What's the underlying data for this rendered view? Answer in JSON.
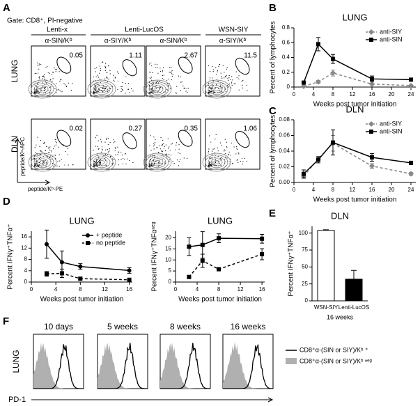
{
  "panel_labels": [
    "A",
    "B",
    "C",
    "D",
    "E",
    "F"
  ],
  "flow": {
    "gate": "Gate: CD8⁺, PI-negative",
    "groups": [
      "Lenti-x",
      "Lenti-LucOS",
      "WSN-SIY"
    ],
    "stains": [
      "α-SIN/Kᵇ",
      "α-SIY/Kᵇ",
      "α-SIN/Kᵇ",
      "α-SIY/Kᵇ"
    ],
    "rows": [
      {
        "label": "LUNG",
        "gates": [
          "0.05",
          "1.11",
          "2.67",
          "11.5"
        ]
      },
      {
        "label": "DLN",
        "gates": [
          "0.02",
          "0.27",
          "0.35",
          "1.06"
        ]
      }
    ],
    "y_axis": "peptide/Kᵇ-APC",
    "x_axis": "peptide/Kᵇ-PE"
  },
  "chart_data": [
    {
      "type": "line",
      "title": "LUNG",
      "xlabel": "Weeks post tumor initiation",
      "ylabel": "Percent of lymphocytes",
      "x": [
        2,
        5,
        8,
        16,
        24
      ],
      "xlim": [
        0,
        25
      ],
      "xticks": [
        0,
        4,
        8,
        12,
        16,
        20,
        24
      ],
      "ylim": [
        0,
        0.8
      ],
      "yticks": [
        0,
        0.2,
        0.4,
        0.6,
        0.8
      ],
      "legend": "upper right",
      "series": [
        {
          "name": "anti-SIY",
          "color": "#888888",
          "dashed": true,
          "marker": "diamond",
          "values": [
            0.01,
            0.07,
            0.19,
            0.04,
            0.02
          ],
          "errors": [
            0.01,
            0.02,
            0.04,
            0.01,
            0.01
          ]
        },
        {
          "name": "anti-SIN",
          "color": "#000000",
          "dashed": false,
          "marker": "square",
          "values": [
            0.06,
            0.58,
            0.38,
            0.11,
            0.1
          ],
          "errors": [
            0.01,
            0.09,
            0.06,
            0.04,
            0.02
          ]
        }
      ]
    },
    {
      "type": "line",
      "title": "DLN",
      "xlabel": "Weeks post tumor initiation",
      "ylabel": "Percent of lymphocytes",
      "x": [
        2,
        5,
        8,
        16,
        24
      ],
      "xlim": [
        0,
        25
      ],
      "xticks": [
        0,
        4,
        8,
        12,
        16,
        20,
        24
      ],
      "ylim": [
        0,
        0.08
      ],
      "yticks": [
        {
          "value": 0,
          "label": "0.00"
        },
        {
          "value": 0.02,
          "label": "0.02"
        },
        {
          "value": 0.04,
          "label": "0.04"
        },
        {
          "value": 0.06,
          "label": "0.06"
        },
        {
          "value": 0.08,
          "label": "0.08"
        }
      ],
      "legend": "upper right",
      "series": [
        {
          "name": "anti-SIY",
          "color": "#888888",
          "dashed": true,
          "marker": "diamond",
          "values": [
            0.008,
            0.03,
            0.05,
            0.021,
            0.011
          ],
          "errors": [
            0.003,
            0.003,
            0.01,
            0.003,
            0.002
          ]
        },
        {
          "name": "anti-SIN",
          "color": "#000000",
          "dashed": false,
          "marker": "square",
          "values": [
            0.011,
            0.029,
            0.051,
            0.032,
            0.025
          ],
          "errors": [
            0.005,
            0.004,
            0.016,
            0.005,
            0.001
          ]
        }
      ]
    },
    {
      "type": "line",
      "title": "LUNG",
      "xlabel": "Weeks post tumor initiation",
      "ylabel": "Percent IFNγ⁺TNFα⁺",
      "x": [
        2.5,
        5,
        8,
        16
      ],
      "xlim": [
        0,
        16.5
      ],
      "xticks": [
        0,
        4,
        8,
        12,
        16
      ],
      "ylim": [
        0,
        18
      ],
      "yticks": [
        0,
        4,
        8,
        12,
        16
      ],
      "legend": "upper right",
      "series": [
        {
          "name": "+ peptide",
          "color": "#000000",
          "dashed": false,
          "marker": "circle",
          "values": [
            13.4,
            7,
            5.5,
            4.1
          ],
          "errors": [
            5,
            4,
            1,
            1
          ]
        },
        {
          "name": "no peptide",
          "color": "#000000",
          "dashed": true,
          "marker": "square",
          "values": [
            2.9,
            3.1,
            1.2,
            0.8
          ],
          "errors": [
            0.8,
            1.5,
            0.3,
            0.2
          ]
        }
      ]
    },
    {
      "type": "line",
      "title": "LUNG",
      "xlabel": "Weeks post tumor initiation",
      "ylabel": "Percent IFNγ⁺TNFαⁿᵉᵍ",
      "x": [
        2.5,
        5,
        8,
        16
      ],
      "xlim": [
        0,
        16.5
      ],
      "xticks": [
        0,
        4,
        8,
        12,
        16
      ],
      "ylim": [
        0,
        23
      ],
      "yticks": [
        0,
        5,
        10,
        15,
        20
      ],
      "series": [
        {
          "color": "#000000",
          "dashed": false,
          "marker": "square",
          "values": [
            16,
            16.8,
            19.8,
            19.6
          ],
          "errors": [
            4,
            6,
            2,
            2
          ]
        },
        {
          "color": "#000000",
          "dashed": true,
          "marker": "square",
          "values": [
            2.3,
            9.6,
            5.8,
            12.6
          ],
          "errors": [
            0.5,
            3,
            0.5,
            2.5
          ]
        }
      ]
    },
    {
      "type": "bar",
      "title": "DLN",
      "xlabel": "16 weeks",
      "ylabel": "Percent IFNγ⁺TNFα⁺",
      "categories": [
        "WSN-SIY",
        "Lenti-LucOS"
      ],
      "values": [
        104,
        32
      ],
      "errors": [
        1,
        13
      ],
      "colors": [
        "#ffffff",
        "#000000"
      ],
      "ylim": [
        0,
        110
      ],
      "yticks": [
        0,
        25,
        50,
        75,
        100
      ]
    }
  ],
  "histograms": {
    "row_label": "LUNG",
    "x_axis": "PD-1",
    "times": [
      "10 days",
      "5 weeks",
      "8 weeks",
      "16 weeks"
    ],
    "legend": [
      "CD8⁺α-(SIN or SIY)/Kᵇ ⁺",
      "CD8⁺α-(SIN or SIY)/Kᵇ ⁿᵉᵍ"
    ]
  }
}
